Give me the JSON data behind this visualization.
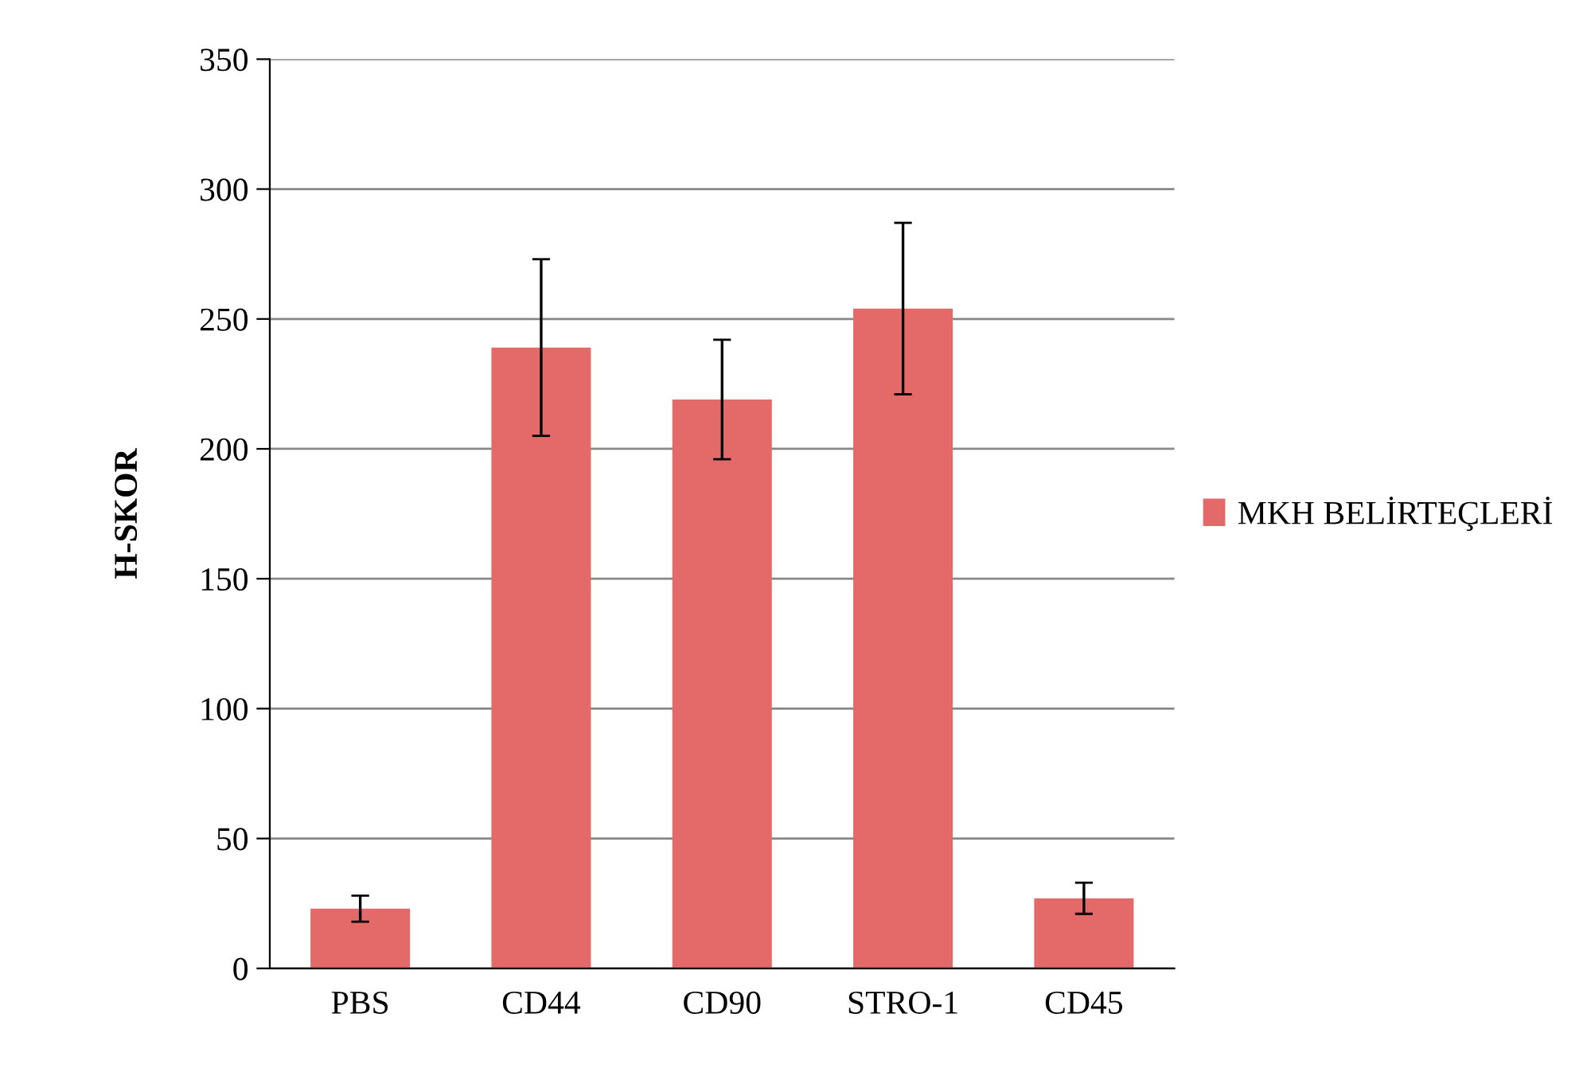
{
  "chart_data": {
    "type": "bar",
    "ylabel": "H-SKOR",
    "categories": [
      "PBS",
      "CD44",
      "CD90",
      "STRO-1",
      "CD45"
    ],
    "series": [
      {
        "name": "MKH BELİRTEÇLERİ",
        "color": "#e46a6a",
        "values": [
          23,
          239,
          219,
          254,
          27
        ],
        "errors": [
          5,
          34,
          23,
          33,
          6
        ]
      }
    ],
    "ylim": [
      0,
      350
    ],
    "yticks": [
      0,
      50,
      100,
      150,
      200,
      250,
      300,
      350
    ],
    "grid": "y",
    "legend": "right"
  }
}
